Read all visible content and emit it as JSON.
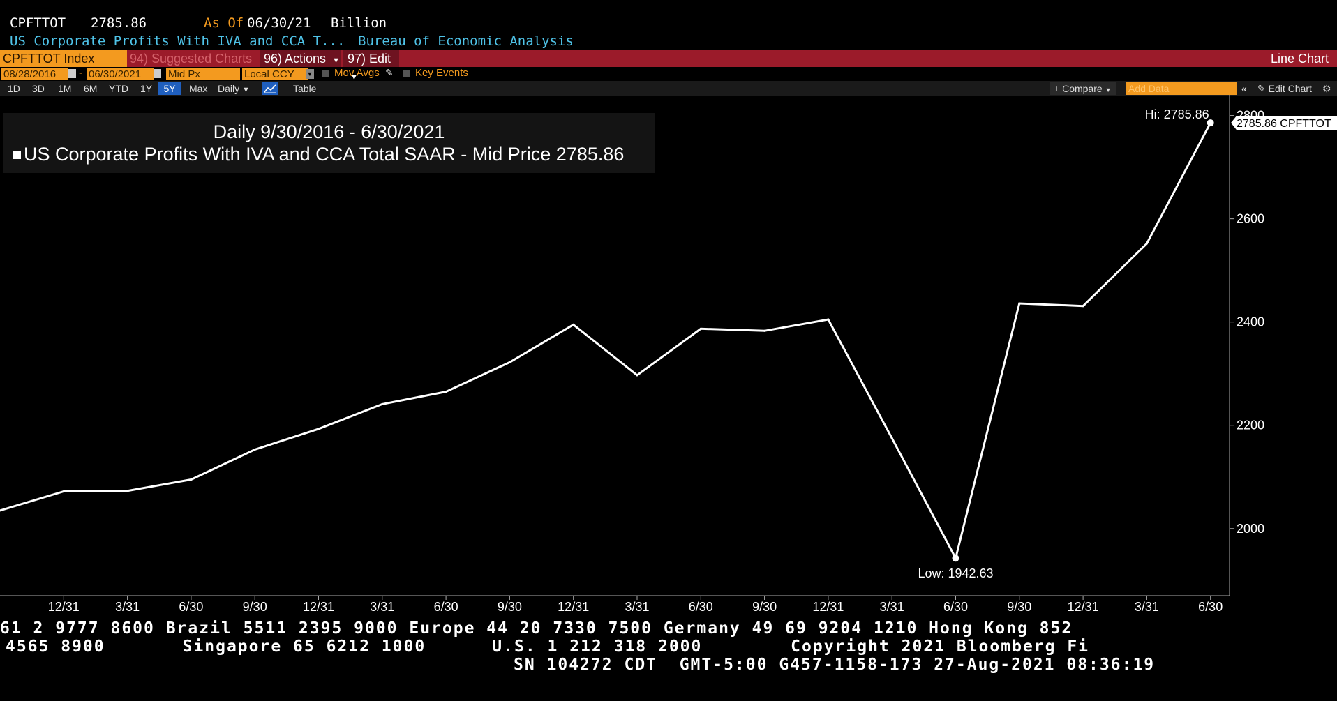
{
  "header": {
    "ticker": "CPFTTOT",
    "last": "2785.86",
    "as_of_label": "As Of",
    "as_of_date": "06/30/21",
    "unit": "Billion",
    "name": "US Corporate Profits With IVA and CCA T...",
    "source": "Bureau of Economic Analysis"
  },
  "toolbar": {
    "security": "CPFTTOT Index",
    "suggested": "94) Suggested Charts",
    "actions": "96) Actions",
    "edit": "97) Edit",
    "chart_type": "Line Chart"
  },
  "range": {
    "start": "08/28/2016",
    "dash": "-",
    "end": "06/30/2021",
    "field": "Mid Px",
    "currency": "Local CCY",
    "mov_avgs": "Mov Avgs",
    "key_events": "Key Events"
  },
  "periods": {
    "items": [
      "1D",
      "3D",
      "1M",
      "6M",
      "YTD",
      "1Y",
      "5Y",
      "Max"
    ],
    "selected": "5Y",
    "frequency": "Daily",
    "table": "Table",
    "compare": "Compare",
    "add_data_placeholder": "Add Data",
    "edit_chart": "Edit Chart"
  },
  "legend": {
    "range_text": "Daily 9/30/2016 - 6/30/2021",
    "series_text": "US Corporate Profits With IVA and CCA Total SAAR - Mid Price",
    "series_value": "2785.86"
  },
  "annotations": {
    "hi_label": "Hi: 2785.86",
    "low_label": "Low: 1942.63",
    "last_tag": "2785.86 CPFTTOT"
  },
  "chart_data": {
    "type": "line",
    "x": [
      "9/30/2016",
      "12/31/2016",
      "3/31/2017",
      "6/30/2017",
      "9/30/2017",
      "12/31/2017",
      "3/31/2018",
      "6/30/2018",
      "9/30/2018",
      "12/31/2018",
      "3/31/2019",
      "6/30/2019",
      "9/30/2019",
      "12/31/2019",
      "3/31/2020",
      "6/30/2020",
      "9/30/2020",
      "12/31/2020",
      "3/31/2021",
      "6/30/2021"
    ],
    "series": [
      {
        "name": "US Corporate Profits With IVA and CCA Total SAAR - Mid Price",
        "values": [
          2035,
          2072,
          2073,
          2095,
          2153,
          2193,
          2241,
          2265,
          2322,
          2395,
          2297,
          2387,
          2383,
          2405,
          2175,
          1942.63,
          2436,
          2431,
          2552,
          2785.86
        ]
      }
    ],
    "xticks": [
      "12/31",
      "3/31",
      "6/30",
      "9/30",
      "12/31",
      "3/31",
      "6/30",
      "9/30",
      "12/31",
      "3/31",
      "6/30",
      "9/30",
      "12/31",
      "3/31",
      "6/30",
      "9/30",
      "12/31",
      "3/31",
      "6/30"
    ],
    "yticks": [
      "2000",
      "2200",
      "2400",
      "2600",
      "2800"
    ],
    "ylim": [
      1870,
      2840
    ],
    "colors": {
      "line": "#ffffff",
      "background": "#000000"
    }
  },
  "footer": {
    "line1": "61 2 9777 8600 Brazil 5511 2395 9000 Europe 44 20 7330 7500 Germany 49 69 9204 1210 Hong Kong 852",
    "line2": "4565 8900       Singapore 65 6212 1000      U.S. 1 212 318 2000        Copyright 2021 Bloomberg Fi",
    "line3": "SN 104272 CDT  GMT-5:00 G457-1158-173 27-Aug-2021 08:36:19"
  }
}
